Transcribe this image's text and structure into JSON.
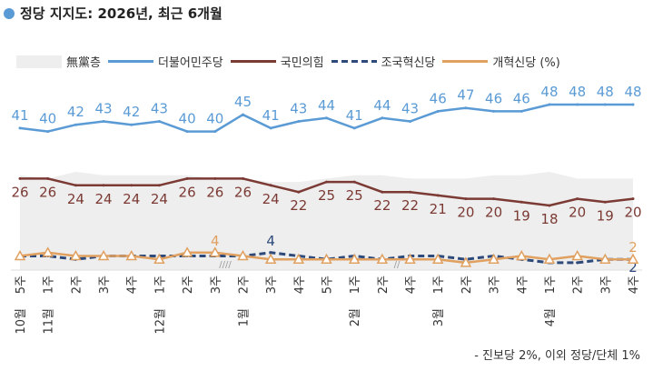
{
  "title": "정당 지지도: 2026년, 최근 6개월",
  "footnote": "- 진보당 2%, 이외 정당/단체 1%",
  "legend": [
    "無黨층",
    "더불어민주당",
    "국민의힘",
    "조국혁신당",
    "개혁신당 (%)"
  ],
  "chart_data": {
    "type": "line",
    "categories": [
      "10월 5주",
      "11월 1주",
      "2주",
      "3주",
      "4주",
      "12월 1주",
      "2주",
      "3주",
      "1월 2주",
      "3주",
      "4주",
      "5주",
      "2월 1주",
      "2주",
      "4주",
      "3월 1주",
      "2주",
      "3주",
      "4주",
      "4월 1주",
      "2주",
      "3주",
      "4주"
    ],
    "series": [
      {
        "name": "無黨층",
        "type": "area",
        "color": "#eeeeee",
        "values": [
          27,
          26,
          28,
          27,
          27,
          27,
          27,
          26,
          26,
          25,
          25,
          26,
          27,
          27,
          26,
          26,
          26,
          27,
          27,
          28,
          26,
          26,
          26
        ]
      },
      {
        "name": "더불어민주당",
        "color": "#5b9bd5",
        "values": [
          41,
          40,
          42,
          43,
          42,
          43,
          40,
          40,
          45,
          41,
          43,
          44,
          41,
          44,
          43,
          46,
          47,
          46,
          46,
          48,
          48,
          48,
          48
        ],
        "labels": "all"
      },
      {
        "name": "국민의힘",
        "color": "#7b3a34",
        "values": [
          26,
          26,
          24,
          24,
          24,
          24,
          26,
          26,
          26,
          24,
          22,
          25,
          25,
          22,
          22,
          21,
          20,
          20,
          19,
          18,
          20,
          19,
          20
        ],
        "labels": "all"
      },
      {
        "name": "조국혁신당",
        "color": "#2e4a7a",
        "dashed": true,
        "values": [
          3,
          3,
          2,
          3,
          3,
          3,
          3,
          3,
          3,
          4,
          3,
          2,
          3,
          2,
          3,
          3,
          2,
          3,
          2,
          1,
          1,
          2,
          2
        ],
        "labeled_points": {
          "9": "4",
          "22": "2"
        }
      },
      {
        "name": "개혁신당 (%)",
        "color": "#e0a060",
        "marker": "triangle",
        "values": [
          3,
          4,
          3,
          3,
          3,
          2,
          4,
          4,
          3,
          2,
          2,
          2,
          2,
          2,
          2,
          2,
          1,
          2,
          3,
          2,
          3,
          2,
          2
        ],
        "labeled_points": {
          "7": "4",
          "22": "2"
        }
      }
    ],
    "axis_breaks": [
      "////",
      "//"
    ]
  }
}
